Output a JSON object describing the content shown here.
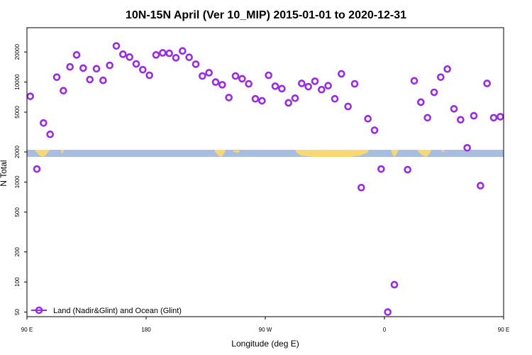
{
  "chart_data": {
    "type": "scatter",
    "title": "10N-15N April (Ver 10_MIP)   2015-01-01 to 2020-12-31",
    "xlabel": "Longitude (deg E)",
    "ylabel": "N Total",
    "y_scale": "log",
    "ylim": [
      45,
      35000
    ],
    "xlim": [
      90,
      450
    ],
    "x_ticks": [
      {
        "value": 90,
        "label": "90 E"
      },
      {
        "value": 180,
        "label": "180"
      },
      {
        "value": 270,
        "label": "90 W"
      },
      {
        "value": 360,
        "label": "0"
      },
      {
        "value": 450,
        "label": "90 E"
      },
      {
        "value": 540,
        "label": "180"
      }
    ],
    "y_ticks": [
      {
        "value": 50,
        "label": "50"
      },
      {
        "value": 100,
        "label": "100"
      },
      {
        "value": 200,
        "label": "200"
      },
      {
        "value": 500,
        "label": "500"
      },
      {
        "value": 1000,
        "label": "1000"
      },
      {
        "value": 2000,
        "label": "2000"
      },
      {
        "value": 5000,
        "label": "5000"
      },
      {
        "value": 10000,
        "label": "10000"
      },
      {
        "value": 20000,
        "label": "20000"
      }
    ],
    "grid": false,
    "legend_position": "bottom-left",
    "series": [
      {
        "name": "Land (Nadir&Glint) and Ocean (Glint)",
        "color": "#9a2be2",
        "points": [
          [
            92.5,
            7200
          ],
          [
            97.5,
            1350
          ],
          [
            102.5,
            3900
          ],
          [
            107.5,
            3000
          ],
          [
            112.5,
            11200
          ],
          [
            117.5,
            8200
          ],
          [
            122.5,
            14200
          ],
          [
            127.5,
            18700
          ],
          [
            132.5,
            13800
          ],
          [
            137.5,
            10600
          ],
          [
            142.5,
            13600
          ],
          [
            147.5,
            10400
          ],
          [
            152.5,
            14700
          ],
          [
            157.5,
            23000
          ],
          [
            162.5,
            19000
          ],
          [
            167.5,
            17800
          ],
          [
            172.5,
            15200
          ],
          [
            177.5,
            13300
          ],
          [
            182.5,
            11700
          ],
          [
            187.5,
            18700
          ],
          [
            192.5,
            19600
          ],
          [
            197.5,
            19400
          ],
          [
            202.5,
            17500
          ],
          [
            207.5,
            20500
          ],
          [
            212.5,
            17700
          ],
          [
            217.5,
            15100
          ],
          [
            222.5,
            11500
          ],
          [
            227.5,
            12400
          ],
          [
            232.5,
            10000
          ],
          [
            237.5,
            9400
          ],
          [
            242.5,
            7000
          ],
          [
            247.5,
            11500
          ],
          [
            252.5,
            10800
          ],
          [
            257.5,
            9600
          ],
          [
            262.5,
            6800
          ],
          [
            267.5,
            6500
          ],
          [
            272.5,
            11700
          ],
          [
            277.5,
            9100
          ],
          [
            282.5,
            8600
          ],
          [
            287.5,
            6200
          ],
          [
            292.5,
            6900
          ],
          [
            297.5,
            9700
          ],
          [
            302.5,
            9000
          ],
          [
            307.5,
            10200
          ],
          [
            312.5,
            8400
          ],
          [
            317.5,
            9200
          ],
          [
            322.5,
            6800
          ],
          [
            327.5,
            12100
          ],
          [
            332.5,
            5700
          ],
          [
            337.5,
            9600
          ],
          [
            342.5,
            880
          ],
          [
            347.5,
            4300
          ],
          [
            352.5,
            3300
          ],
          [
            357.5,
            1350
          ],
          [
            362.5,
            50
          ],
          [
            367.5,
            94
          ],
          [
            377.5,
            1330
          ],
          [
            382.5,
            10300
          ],
          [
            387.5,
            6300
          ],
          [
            392.5,
            4400
          ],
          [
            397.5,
            7900
          ],
          [
            402.5,
            11200
          ],
          [
            407.5,
            13500
          ],
          [
            412.5,
            5400
          ],
          [
            417.5,
            4200
          ],
          [
            422.5,
            2200
          ],
          [
            427.5,
            4600
          ],
          [
            432.5,
            920
          ],
          [
            437.5,
            9700
          ],
          [
            442.5,
            4400
          ],
          [
            447.5,
            4500
          ]
        ]
      }
    ]
  }
}
